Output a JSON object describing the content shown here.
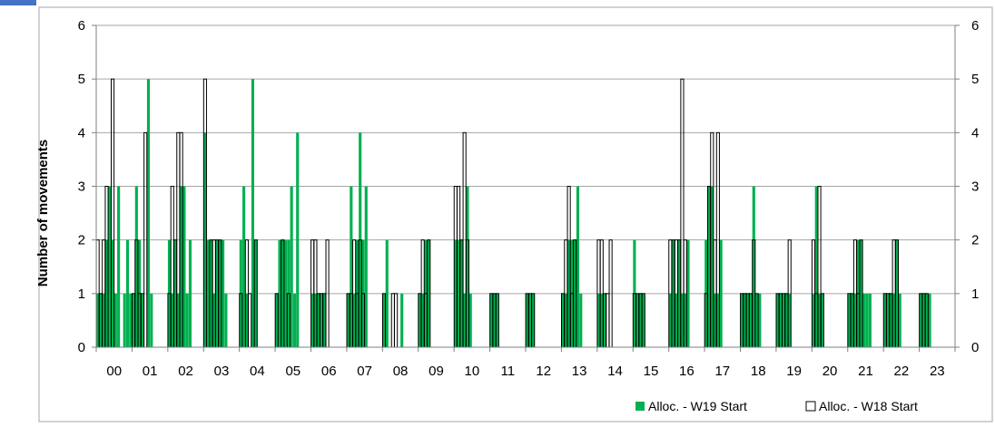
{
  "chart_data": {
    "type": "bar",
    "ylabel": "Number of movements",
    "ylim": [
      0,
      6
    ],
    "yticks": [
      0,
      1,
      2,
      3,
      4,
      5,
      6
    ],
    "secondary_y_ticks": [
      0,
      1,
      2,
      3,
      4,
      5,
      6
    ],
    "hour_labels": [
      "00",
      "01",
      "02",
      "03",
      "04",
      "05",
      "06",
      "07",
      "08",
      "09",
      "10",
      "11",
      "12",
      "13",
      "14",
      "15",
      "16",
      "17",
      "18",
      "19",
      "20",
      "21",
      "22",
      "23"
    ],
    "slots_per_hour": 12,
    "grid": true,
    "legend_position": "bottom-right",
    "colors": {
      "w19": "#00B050",
      "w18_fill": "#ffffff",
      "w18_edge": "#000000",
      "grid": "#a6a6a6",
      "corner_mark": "#4472C4"
    },
    "series": [
      {
        "name": "Alloc. - W19 Start",
        "key": "w19",
        "values": [
          1,
          1,
          1,
          2,
          3,
          2,
          1,
          3,
          0,
          1,
          2,
          1,
          1,
          3,
          2,
          1,
          0,
          5,
          1,
          0,
          0,
          0,
          0,
          0,
          2,
          1,
          2,
          1,
          3,
          3,
          1,
          2,
          0,
          0,
          0,
          0,
          4,
          2,
          2,
          1,
          2,
          2,
          2,
          1,
          0,
          0,
          0,
          0,
          2,
          3,
          1,
          0,
          5,
          2,
          0,
          0,
          0,
          0,
          0,
          0,
          1,
          2,
          2,
          2,
          2,
          3,
          1,
          4,
          0,
          0,
          0,
          0,
          1,
          1,
          1,
          1,
          1,
          0,
          0,
          0,
          0,
          0,
          0,
          0,
          1,
          3,
          1,
          2,
          4,
          2,
          3,
          0,
          0,
          0,
          0,
          0,
          1,
          2,
          0,
          0,
          0,
          0,
          1,
          0,
          0,
          0,
          0,
          0,
          1,
          1,
          2,
          2,
          0,
          0,
          0,
          0,
          0,
          0,
          0,
          0,
          2,
          2,
          2,
          1,
          3,
          1,
          0,
          0,
          0,
          0,
          0,
          0,
          1,
          1,
          1,
          0,
          0,
          0,
          0,
          0,
          0,
          0,
          0,
          0,
          1,
          1,
          1,
          0,
          0,
          0,
          0,
          0,
          0,
          0,
          0,
          0,
          1,
          1,
          2,
          2,
          2,
          3,
          1,
          0,
          0,
          0,
          0,
          0,
          1,
          1,
          1,
          0,
          0,
          0,
          0,
          0,
          0,
          0,
          0,
          0,
          2,
          1,
          1,
          1,
          0,
          0,
          0,
          0,
          0,
          0,
          0,
          0,
          1,
          2,
          1,
          2,
          1,
          1,
          2,
          0,
          0,
          0,
          0,
          0,
          2,
          3,
          3,
          1,
          1,
          2,
          0,
          0,
          0,
          0,
          0,
          0,
          1,
          1,
          1,
          1,
          3,
          1,
          1,
          0,
          0,
          0,
          0,
          0,
          1,
          1,
          1,
          1,
          1,
          0,
          0,
          0,
          0,
          0,
          0,
          0,
          1,
          3,
          1,
          1,
          0,
          0,
          0,
          0,
          0,
          0,
          0,
          0,
          1,
          1,
          1,
          2,
          2,
          1,
          1,
          1,
          0,
          0,
          0,
          0,
          1,
          1,
          1,
          1,
          2,
          1,
          0,
          0,
          0,
          0,
          0,
          0,
          1,
          1,
          1,
          1,
          0,
          0,
          0,
          0,
          0,
          0,
          0,
          0
        ]
      },
      {
        "name": "Alloc. - W18 Start",
        "key": "w18",
        "values": [
          2,
          1,
          2,
          3,
          0,
          5,
          0,
          0,
          0,
          0,
          0,
          0,
          1,
          2,
          1,
          1,
          4,
          0,
          0,
          0,
          0,
          0,
          0,
          0,
          1,
          3,
          2,
          4,
          4,
          0,
          0,
          0,
          0,
          0,
          0,
          0,
          5,
          0,
          2,
          2,
          2,
          2,
          0,
          0,
          0,
          0,
          0,
          0,
          1,
          0,
          2,
          1,
          0,
          2,
          0,
          0,
          0,
          0,
          0,
          0,
          1,
          0,
          2,
          0,
          1,
          0,
          0,
          0,
          0,
          0,
          0,
          0,
          2,
          2,
          1,
          1,
          1,
          2,
          0,
          0,
          0,
          0,
          0,
          0,
          1,
          1,
          2,
          1,
          2,
          1,
          0,
          0,
          0,
          0,
          0,
          0,
          1,
          0,
          0,
          1,
          1,
          0,
          0,
          0,
          0,
          0,
          0,
          0,
          1,
          2,
          1,
          2,
          0,
          0,
          0,
          0,
          0,
          0,
          0,
          0,
          3,
          3,
          2,
          4,
          2,
          0,
          0,
          0,
          0,
          0,
          0,
          0,
          1,
          1,
          1,
          0,
          0,
          0,
          0,
          0,
          0,
          0,
          0,
          0,
          1,
          1,
          1,
          0,
          0,
          0,
          0,
          0,
          0,
          0,
          0,
          0,
          1,
          2,
          3,
          1,
          2,
          0,
          0,
          0,
          0,
          0,
          0,
          0,
          2,
          2,
          1,
          1,
          2,
          0,
          0,
          0,
          0,
          0,
          0,
          0,
          1,
          1,
          1,
          1,
          0,
          0,
          0,
          0,
          0,
          0,
          0,
          0,
          2,
          2,
          2,
          2,
          5,
          2,
          0,
          0,
          0,
          0,
          0,
          0,
          1,
          3,
          4,
          2,
          4,
          0,
          0,
          0,
          0,
          0,
          0,
          0,
          1,
          1,
          1,
          1,
          2,
          1,
          0,
          0,
          0,
          0,
          0,
          0,
          1,
          1,
          1,
          1,
          2,
          0,
          0,
          0,
          0,
          0,
          0,
          0,
          2,
          1,
          3,
          1,
          0,
          0,
          0,
          0,
          0,
          0,
          0,
          0,
          1,
          1,
          2,
          1,
          2,
          0,
          0,
          0,
          0,
          0,
          0,
          0,
          1,
          1,
          1,
          2,
          2,
          0,
          0,
          0,
          0,
          0,
          0,
          0,
          1,
          1,
          1,
          0,
          0,
          0,
          0,
          0,
          0,
          0,
          0,
          0
        ]
      }
    ]
  }
}
